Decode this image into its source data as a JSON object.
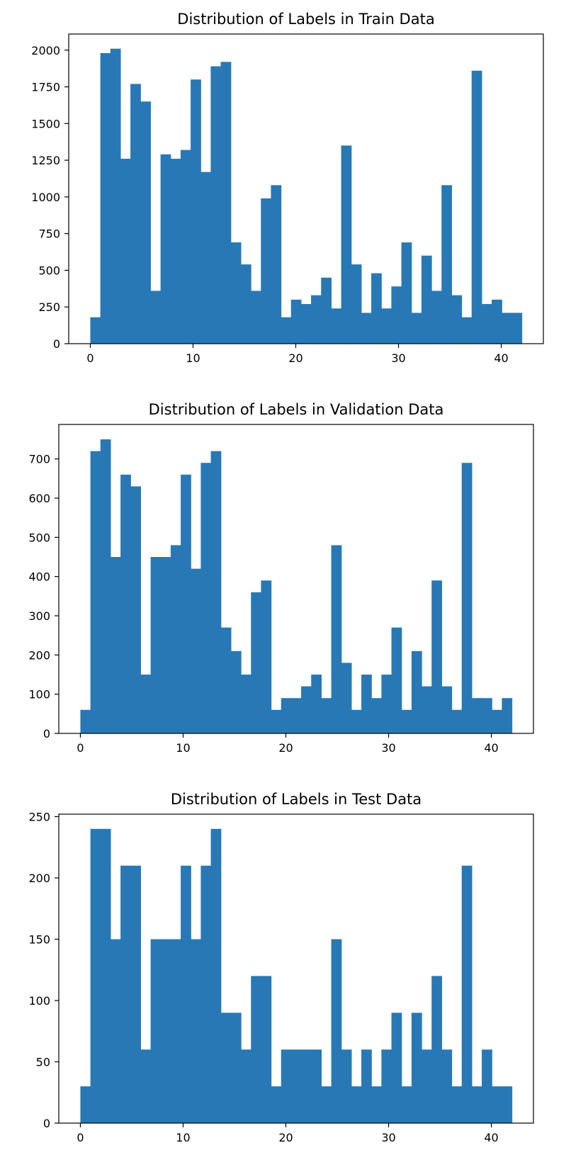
{
  "chart_data": [
    {
      "type": "bar",
      "title": "Distribution of Labels in Train Data",
      "xlabel": "",
      "ylabel": "",
      "bins": 43,
      "xlim": [
        -2.1,
        44.1
      ],
      "ylim": [
        0,
        2110
      ],
      "x_ticks": [
        0,
        10,
        20,
        30,
        40
      ],
      "y_ticks": [
        0,
        250,
        500,
        750,
        1000,
        1250,
        1500,
        1750,
        2000
      ],
      "grid": false,
      "color": "#2878b5",
      "categories": [
        0,
        1,
        2,
        3,
        4,
        5,
        6,
        7,
        8,
        9,
        10,
        11,
        12,
        13,
        14,
        15,
        16,
        17,
        18,
        19,
        20,
        21,
        22,
        23,
        24,
        25,
        26,
        27,
        28,
        29,
        30,
        31,
        32,
        33,
        34,
        35,
        36,
        37,
        38,
        39,
        40,
        41,
        42
      ],
      "values": [
        180,
        1980,
        2010,
        1260,
        1770,
        1650,
        360,
        1290,
        1260,
        1320,
        1800,
        1170,
        1890,
        1920,
        690,
        540,
        360,
        990,
        1080,
        180,
        300,
        270,
        330,
        450,
        240,
        1350,
        540,
        210,
        480,
        240,
        390,
        690,
        210,
        600,
        360,
        1080,
        330,
        180,
        1860,
        270,
        300,
        210,
        210
      ]
    },
    {
      "type": "bar",
      "title": "Distribution of Labels in Validation Data",
      "xlabel": "",
      "ylabel": "",
      "bins": 43,
      "xlim": [
        -2.1,
        44.1
      ],
      "ylim": [
        0,
        788
      ],
      "x_ticks": [
        0,
        10,
        20,
        30,
        40
      ],
      "y_ticks": [
        0,
        100,
        200,
        300,
        400,
        500,
        600,
        700
      ],
      "grid": false,
      "color": "#2878b5",
      "categories": [
        0,
        1,
        2,
        3,
        4,
        5,
        6,
        7,
        8,
        9,
        10,
        11,
        12,
        13,
        14,
        15,
        16,
        17,
        18,
        19,
        20,
        21,
        22,
        23,
        24,
        25,
        26,
        27,
        28,
        29,
        30,
        31,
        32,
        33,
        34,
        35,
        36,
        37,
        38,
        39,
        40,
        41,
        42
      ],
      "values": [
        60,
        720,
        750,
        450,
        660,
        630,
        150,
        450,
        450,
        480,
        660,
        420,
        690,
        720,
        270,
        210,
        150,
        360,
        390,
        60,
        90,
        90,
        120,
        150,
        90,
        480,
        180,
        60,
        150,
        90,
        150,
        270,
        60,
        210,
        120,
        390,
        120,
        60,
        690,
        90,
        90,
        60,
        90
      ]
    },
    {
      "type": "bar",
      "title": "Distribution of Labels in Test Data",
      "xlabel": "",
      "ylabel": "",
      "bins": 43,
      "xlim": [
        -2.1,
        44.1
      ],
      "ylim": [
        0,
        252
      ],
      "x_ticks": [
        0,
        10,
        20,
        30,
        40
      ],
      "y_ticks": [
        0,
        50,
        100,
        150,
        200,
        250
      ],
      "grid": false,
      "color": "#2878b5",
      "categories": [
        0,
        1,
        2,
        3,
        4,
        5,
        6,
        7,
        8,
        9,
        10,
        11,
        12,
        13,
        14,
        15,
        16,
        17,
        18,
        19,
        20,
        21,
        22,
        23,
        24,
        25,
        26,
        27,
        28,
        29,
        30,
        31,
        32,
        33,
        34,
        35,
        36,
        37,
        38,
        39,
        40,
        41,
        42
      ],
      "values": [
        30,
        240,
        240,
        150,
        210,
        210,
        60,
        150,
        150,
        150,
        210,
        150,
        210,
        240,
        90,
        90,
        60,
        120,
        120,
        30,
        60,
        60,
        60,
        60,
        30,
        150,
        60,
        30,
        60,
        30,
        60,
        90,
        30,
        90,
        60,
        120,
        60,
        30,
        210,
        30,
        60,
        30,
        30
      ]
    }
  ]
}
